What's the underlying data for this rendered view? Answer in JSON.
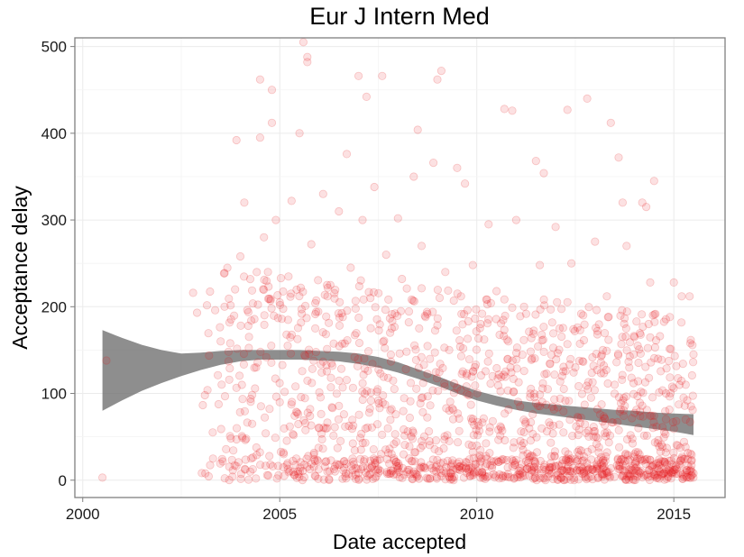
{
  "chart_data": {
    "type": "scatter",
    "title": "Eur J Intern Med",
    "xlabel": "Date accepted",
    "ylabel": "Acceptance delay",
    "x_ticks": [
      "2000",
      "2005",
      "2010",
      "2015"
    ],
    "x_tick_values": [
      2000,
      2005,
      2010,
      2015
    ],
    "y_ticks": [
      "0",
      "100",
      "200",
      "300",
      "400",
      "500"
    ],
    "y_tick_values": [
      0,
      100,
      200,
      300,
      400,
      500
    ],
    "xlim": [
      1999.8,
      2016.3
    ],
    "ylim": [
      -20,
      510
    ],
    "grid": true,
    "point_color": "#e41a1c",
    "band_color": "#6e6e6e",
    "smooth_band": {
      "x": [
        2000.5,
        2001.0,
        2001.5,
        2002.0,
        2002.5,
        2003.0,
        2003.5,
        2004.0,
        2004.5,
        2005.0,
        2005.5,
        2006.0,
        2006.5,
        2007.0,
        2007.5,
        2008.0,
        2008.5,
        2009.0,
        2009.5,
        2010.0,
        2010.5,
        2011.0,
        2011.5,
        2012.0,
        2012.5,
        2013.0,
        2013.5,
        2014.0,
        2014.5,
        2015.0,
        2015.5
      ],
      "lower": [
        80,
        92,
        103,
        112,
        120,
        127,
        133,
        137,
        139,
        139,
        139,
        138,
        137,
        134,
        130,
        124,
        117,
        109,
        100,
        92,
        86,
        81,
        77,
        74,
        71,
        68,
        65,
        62,
        59,
        56,
        52
      ],
      "upper": [
        173,
        164,
        156,
        150,
        146,
        147,
        149,
        150,
        150,
        150,
        150,
        149,
        148,
        146,
        142,
        136,
        128,
        120,
        111,
        103,
        97,
        92,
        89,
        87,
        85,
        83,
        81,
        80,
        78,
        77,
        76
      ]
    },
    "points": [
      [
        2000.5,
        3
      ],
      [
        2000.6,
        138
      ],
      [
        2002.8,
        216
      ],
      [
        2002.9,
        193
      ],
      [
        2003.1,
        98
      ],
      [
        2003.3,
        55
      ],
      [
        2003.5,
        160
      ],
      [
        2003.6,
        200
      ],
      [
        2003.7,
        148
      ],
      [
        2003.8,
        4
      ],
      [
        2003.9,
        392
      ],
      [
        2004.0,
        258
      ],
      [
        2004.1,
        320
      ],
      [
        2004.2,
        178
      ],
      [
        2004.3,
        65
      ],
      [
        2004.4,
        130
      ],
      [
        2004.5,
        462
      ],
      [
        2004.5,
        395
      ],
      [
        2004.6,
        280
      ],
      [
        2004.7,
        240
      ],
      [
        2004.8,
        450
      ],
      [
        2004.8,
        412
      ],
      [
        2004.9,
        300
      ],
      [
        2005.0,
        205
      ],
      [
        2005.0,
        90
      ],
      [
        2005.1,
        30
      ],
      [
        2005.2,
        155
      ],
      [
        2005.3,
        322
      ],
      [
        2005.4,
        108
      ],
      [
        2005.5,
        400
      ],
      [
        2005.6,
        505
      ],
      [
        2005.7,
        488
      ],
      [
        2005.7,
        482
      ],
      [
        2005.8,
        272
      ],
      [
        2005.9,
        175
      ],
      [
        2006.0,
        60
      ],
      [
        2006.1,
        330
      ],
      [
        2006.2,
        225
      ],
      [
        2006.3,
        118
      ],
      [
        2006.4,
        10
      ],
      [
        2006.5,
        310
      ],
      [
        2006.6,
        188
      ],
      [
        2006.7,
        376
      ],
      [
        2006.8,
        245
      ],
      [
        2006.9,
        142
      ],
      [
        2007.0,
        466
      ],
      [
        2007.1,
        300
      ],
      [
        2007.2,
        442
      ],
      [
        2007.3,
        210
      ],
      [
        2007.4,
        338
      ],
      [
        2007.5,
        92
      ],
      [
        2007.6,
        466
      ],
      [
        2007.7,
        260
      ],
      [
        2007.8,
        170
      ],
      [
        2007.9,
        25
      ],
      [
        2008.0,
        302
      ],
      [
        2008.1,
        232
      ],
      [
        2008.2,
        128
      ],
      [
        2008.3,
        72
      ],
      [
        2008.4,
        350
      ],
      [
        2008.5,
        404
      ],
      [
        2008.6,
        270
      ],
      [
        2008.7,
        188
      ],
      [
        2008.8,
        45
      ],
      [
        2008.9,
        366
      ],
      [
        2009.0,
        462
      ],
      [
        2009.1,
        472
      ],
      [
        2009.2,
        240
      ],
      [
        2009.3,
        150
      ],
      [
        2009.4,
        12
      ],
      [
        2009.5,
        360
      ],
      [
        2009.6,
        212
      ],
      [
        2009.7,
        342
      ],
      [
        2009.8,
        98
      ],
      [
        2009.9,
        248
      ],
      [
        2010.0,
        40
      ],
      [
        2010.1,
        180
      ],
      [
        2010.2,
        5
      ],
      [
        2010.3,
        295
      ],
      [
        2010.4,
        120
      ],
      [
        2010.5,
        218
      ],
      [
        2010.6,
        62
      ],
      [
        2010.7,
        428
      ],
      [
        2010.8,
        160
      ],
      [
        2010.9,
        426
      ],
      [
        2011.0,
        300
      ],
      [
        2011.1,
        85
      ],
      [
        2011.2,
        200
      ],
      [
        2011.3,
        20
      ],
      [
        2011.4,
        140
      ],
      [
        2011.5,
        368
      ],
      [
        2011.6,
        248
      ],
      [
        2011.7,
        354
      ],
      [
        2011.8,
        105
      ],
      [
        2011.9,
        8
      ],
      [
        2012.0,
        292
      ],
      [
        2012.1,
        175
      ],
      [
        2012.2,
        55
      ],
      [
        2012.3,
        427
      ],
      [
        2012.4,
        250
      ],
      [
        2012.5,
        130
      ],
      [
        2012.6,
        15
      ],
      [
        2012.7,
        190
      ],
      [
        2012.8,
        440
      ],
      [
        2012.9,
        95
      ],
      [
        2013.0,
        275
      ],
      [
        2013.1,
        38
      ],
      [
        2013.2,
        150
      ],
      [
        2013.3,
        212
      ],
      [
        2013.4,
        412
      ],
      [
        2013.5,
        110
      ],
      [
        2013.6,
        372
      ],
      [
        2013.7,
        320
      ],
      [
        2013.8,
        270
      ],
      [
        2013.9,
        8
      ],
      [
        2014.0,
        165
      ],
      [
        2014.1,
        60
      ],
      [
        2014.2,
        320
      ],
      [
        2014.3,
        315
      ],
      [
        2014.4,
        228
      ],
      [
        2014.5,
        345
      ],
      [
        2014.6,
        140
      ],
      [
        2014.7,
        5
      ],
      [
        2014.8,
        100
      ],
      [
        2014.9,
        188
      ],
      [
        2015.0,
        228
      ],
      [
        2015.1,
        40
      ],
      [
        2015.2,
        212
      ],
      [
        2015.3,
        70
      ],
      [
        2015.4,
        3
      ],
      [
        2015.5,
        145
      ],
      [
        2015.5,
        8
      ],
      [
        2015.4,
        212
      ],
      [
        2015.3,
        110
      ],
      [
        2015.2,
        25
      ],
      [
        2014.9,
        10
      ],
      [
        2014.6,
        20
      ],
      [
        2014.3,
        6
      ],
      [
        2014.0,
        30
      ],
      [
        2013.7,
        12
      ]
    ],
    "dense_cloud": {
      "seed": 7,
      "count": 1500,
      "x_range": [
        2003.0,
        2015.5
      ],
      "y_range": [
        0,
        260
      ]
    }
  }
}
